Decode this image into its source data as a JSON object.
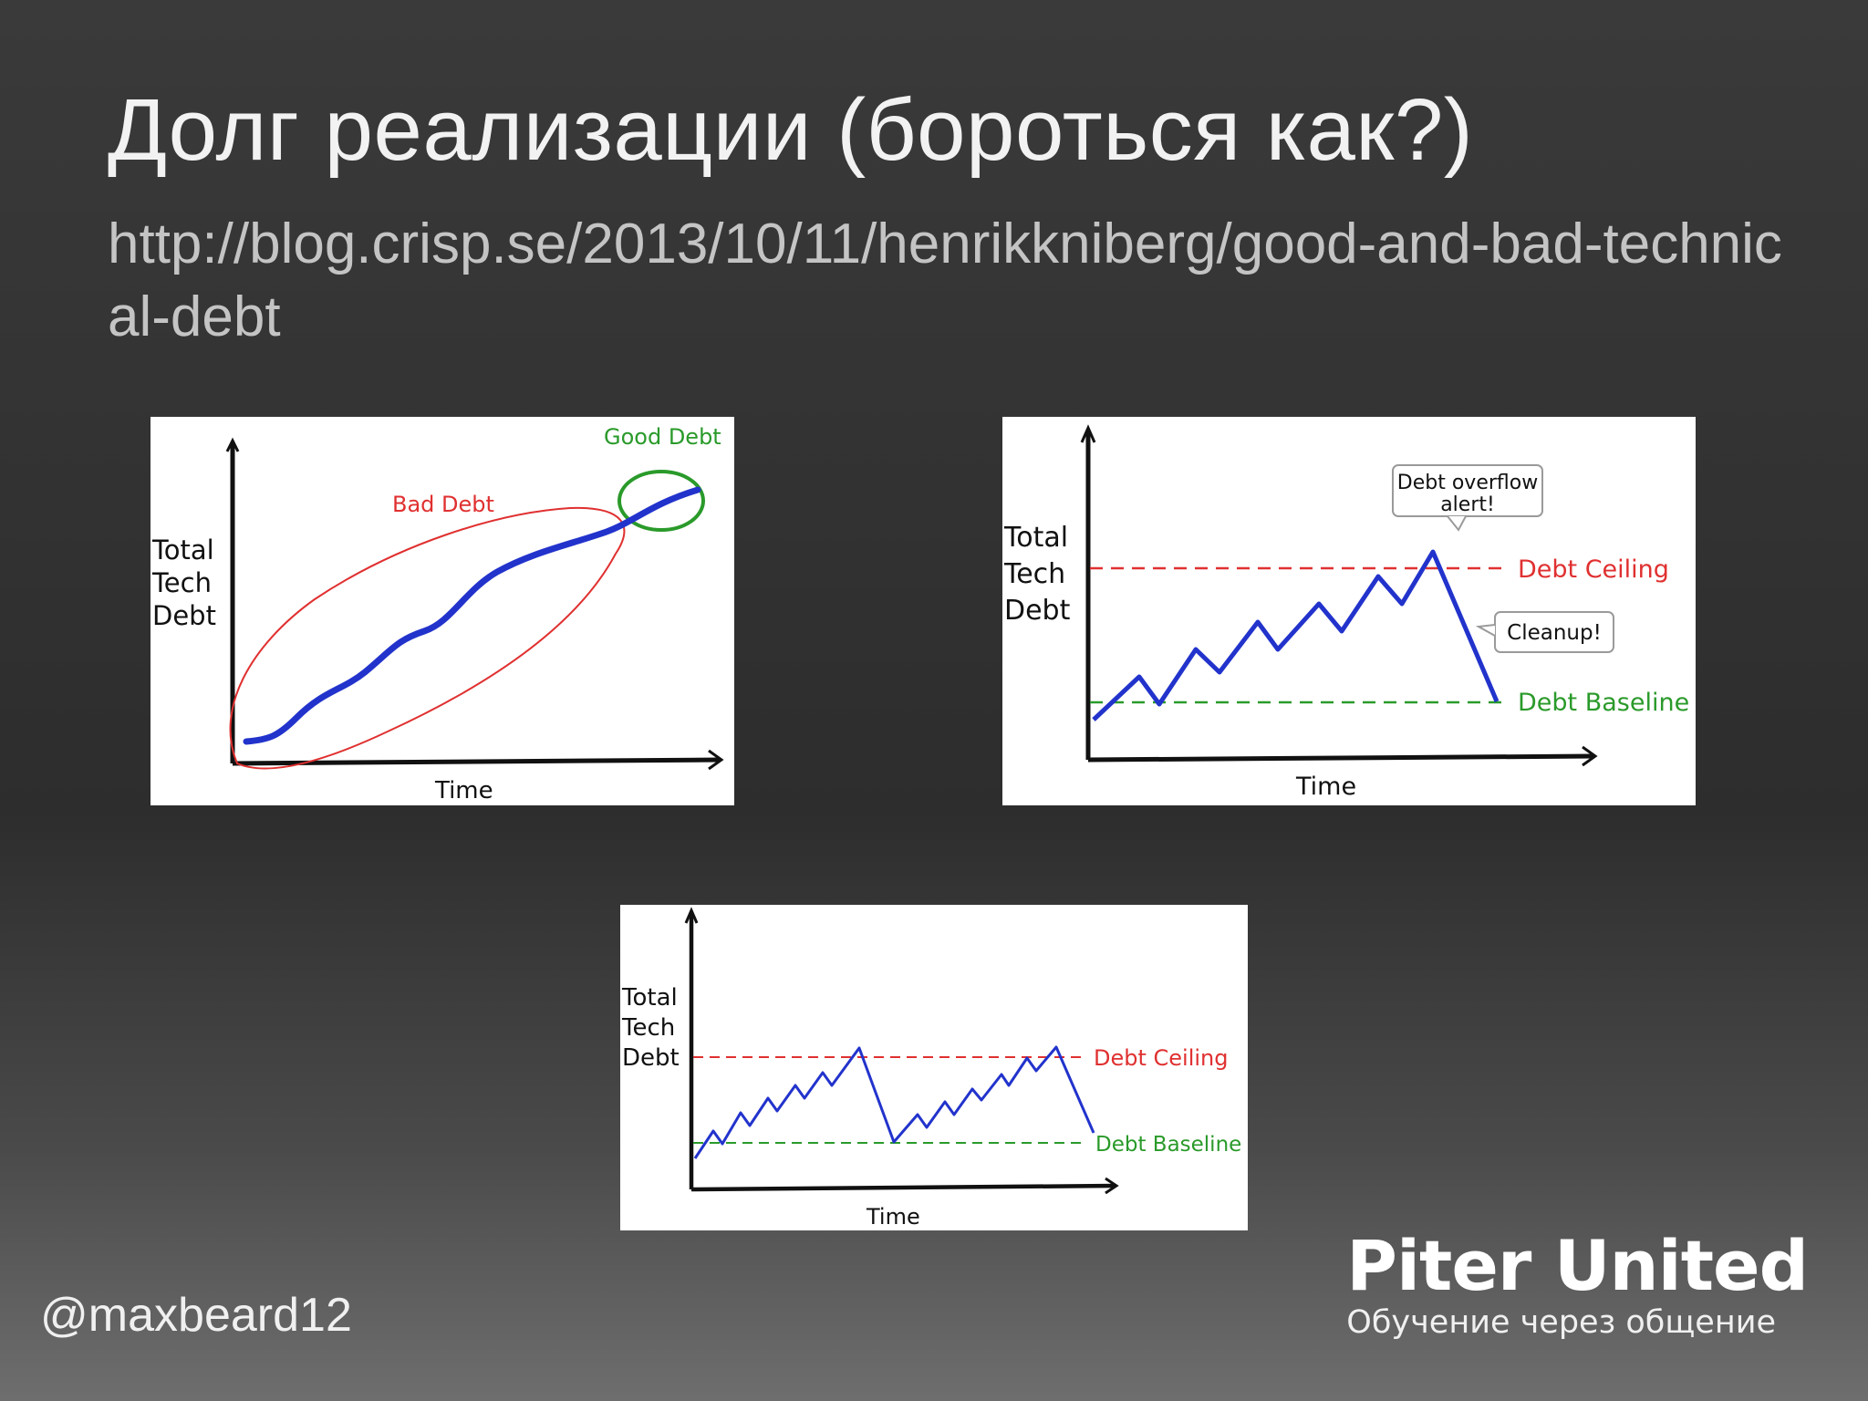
{
  "slide": {
    "title": "Долг реализации (бороться как?)",
    "url": "http://blog.crisp.se/2013/10/11/henrikkniberg/good-and-bad-technical-debt",
    "author": "@maxbeard12"
  },
  "brand": {
    "name": "Piter United",
    "tagline": "Обучение через общение"
  },
  "figures": [
    {
      "y_label_lines": [
        "Total",
        "Tech",
        "Debt"
      ],
      "x_label": "Time",
      "bad_debt_label": "Bad Debt",
      "good_debt_label": "Good Debt"
    },
    {
      "y_label_lines": [
        "Total",
        "Tech",
        "Debt"
      ],
      "x_label": "Time",
      "ceiling_label": "Debt Ceiling",
      "baseline_label": "Debt Baseline",
      "callout_alert_lines": [
        "Debt overflow",
        "alert!"
      ],
      "callout_cleanup": "Cleanup!"
    },
    {
      "y_label_lines": [
        "Total",
        "Tech",
        "Debt"
      ],
      "x_label": "Time",
      "ceiling_label": "Debt Ceiling",
      "baseline_label": "Debt Baseline"
    }
  ],
  "colors": {
    "debt_line": "#2233cc",
    "bad_debt": "#e03030",
    "good_debt": "#2a9a2a",
    "ceiling": "#e03030",
    "baseline": "#2a9a2a"
  }
}
